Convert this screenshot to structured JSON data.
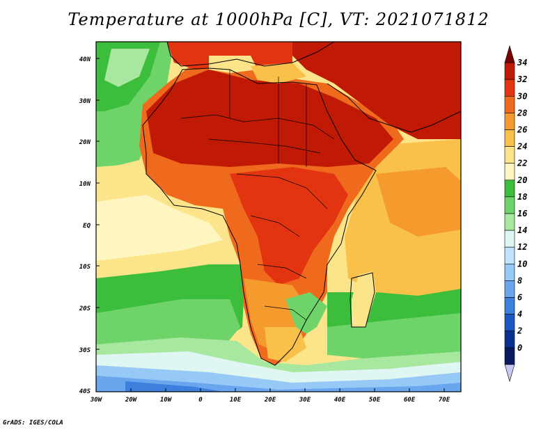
{
  "title": "Temperature at 1000hPa [C], VT: 2021071812",
  "credit": "GrADS: IGES/COLA",
  "map": {
    "lat_ticks": [
      "40N",
      "30N",
      "20N",
      "10N",
      "EQ",
      "10S",
      "20S",
      "30S",
      "40S"
    ],
    "lon_ticks": [
      "30W",
      "20W",
      "10W",
      "0",
      "10E",
      "20E",
      "30E",
      "40E",
      "50E",
      "60E",
      "70E"
    ],
    "lon_range": [
      -30,
      75
    ],
    "lat_range": [
      -40,
      45
    ]
  },
  "colorbar": {
    "labels": [
      "34",
      "32",
      "30",
      "28",
      "26",
      "24",
      "22",
      "20",
      "18",
      "16",
      "14",
      "12",
      "10",
      "8",
      "6",
      "4",
      "2",
      "0"
    ],
    "colors": [
      "#7a0403",
      "#c01a06",
      "#e23410",
      "#f06a1e",
      "#f59a2c",
      "#f9c04a",
      "#fbe48a",
      "#fff5c0",
      "#3cbe3c",
      "#6ed46a",
      "#a8e7a0",
      "#dff6f2",
      "#c0e2fa",
      "#96c9f5",
      "#6aa6ee",
      "#3d7fdc",
      "#1a56c4",
      "#08308f",
      "#0a1a5e",
      "#c8c8f5"
    ]
  }
}
